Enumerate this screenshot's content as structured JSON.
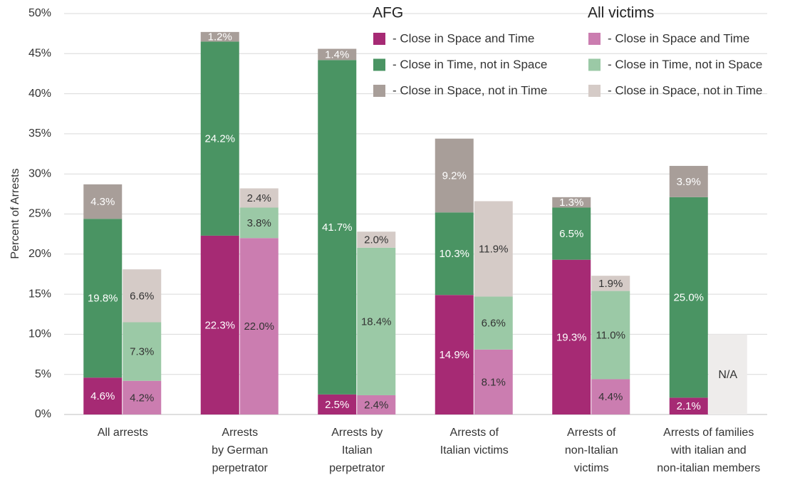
{
  "chart_data": {
    "type": "bar",
    "stacked": true,
    "y_label": "Percent of Arrests",
    "categories": [
      "All arrests",
      "Arrests\nby German\nperpetrator",
      "Arrests by\nItalian\nperpetrator",
      "Arrests of\nItalian victims",
      "Arrests of\nnon-Italian\nvictims",
      "Arrests of families\nwith italian and\nnon-italian members"
    ],
    "ylim": [
      0,
      50
    ],
    "yticks": [
      {
        "value": 0,
        "label": "0%"
      },
      {
        "value": 5,
        "label": "5%"
      },
      {
        "value": 10,
        "label": "10%"
      },
      {
        "value": 15,
        "label": "15%"
      },
      {
        "value": 20,
        "label": "20%"
      },
      {
        "value": 25,
        "label": "25%"
      },
      {
        "value": 30,
        "label": "30%"
      },
      {
        "value": 35,
        "label": "35%"
      },
      {
        "value": 40,
        "label": "40%"
      },
      {
        "value": 45,
        "label": "45%"
      },
      {
        "value": 50,
        "label": "50%"
      }
    ],
    "grid": true,
    "groups": [
      {
        "name": "AFG",
        "label_color": "#ffffff",
        "series": [
          {
            "name": "- Close in Space and Time",
            "color": "#a62a74",
            "values": [
              4.6,
              22.3,
              2.5,
              14.9,
              19.3,
              2.1
            ],
            "value_labels": [
              "4.6%",
              "22.3%",
              "2.5%",
              "14.9%",
              "19.3%",
              "2.1%"
            ]
          },
          {
            "name": "- Close in Time, not in Space",
            "color": "#4a9463",
            "values": [
              19.8,
              24.2,
              41.7,
              10.3,
              6.5,
              25.0
            ],
            "value_labels": [
              "19.8%",
              "24.2%",
              "41.7%",
              "10.3%",
              "6.5%",
              "25.0%"
            ]
          },
          {
            "name": "- Close in Space, not in Time",
            "color": "#a89e99",
            "values": [
              4.3,
              1.2,
              1.4,
              9.2,
              1.3,
              3.9
            ],
            "value_labels": [
              "4.3%",
              "1.2%",
              "1.4%",
              "9.2%",
              "1.3%",
              "3.9%"
            ]
          }
        ]
      },
      {
        "name": "All victims",
        "label_color": "#333333",
        "series": [
          {
            "name": "- Close in Space and Time",
            "color": "#cb7db0",
            "values": [
              4.2,
              22.0,
              2.4,
              8.1,
              4.4,
              null
            ],
            "value_labels": [
              "4.2%",
              "22.0%",
              "2.4%",
              "8.1%",
              "4.4%",
              null
            ]
          },
          {
            "name": "- Close in Time, not in Space",
            "color": "#9bc9a6",
            "values": [
              7.3,
              3.8,
              18.4,
              6.6,
              11.0,
              null
            ],
            "value_labels": [
              "7.3%",
              "3.8%",
              "18.4%",
              "6.6%",
              "11.0%",
              null
            ]
          },
          {
            "name": "- Close in Space, not in Time",
            "color": "#d5cbc7",
            "values": [
              6.6,
              2.4,
              2.0,
              11.9,
              1.9,
              null
            ],
            "value_labels": [
              "6.6%",
              "2.4%",
              "2.0%",
              "11.9%",
              "1.9%",
              null
            ]
          }
        ],
        "missing": {
          "text": "N/A",
          "value": 10,
          "color": "#eeeceb"
        }
      }
    ]
  }
}
